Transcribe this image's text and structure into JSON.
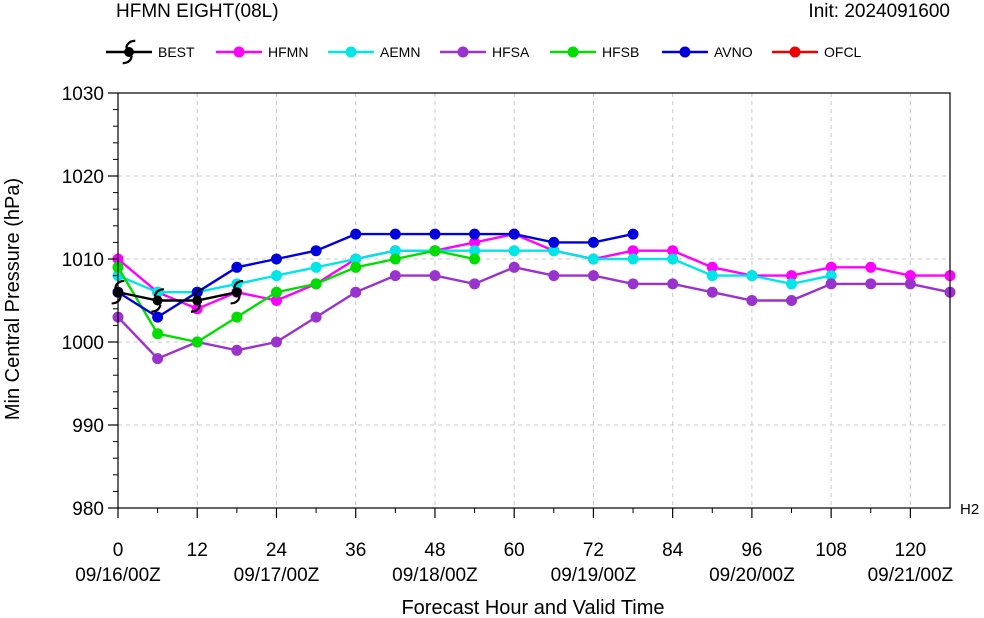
{
  "header": {
    "title": "HFMN EIGHT(08L)",
    "init": "Init: 2024091600"
  },
  "chart_data": {
    "type": "line",
    "title": "HFMN EIGHT(08L)",
    "subtitle": "Init: 2024091600",
    "xlabel": "Forecast Hour and Valid Time",
    "ylabel": "Min Central Pressure (hPa)",
    "xlim": [
      0,
      126
    ],
    "ylim": [
      980,
      1030
    ],
    "x_ticks": [
      0,
      12,
      24,
      36,
      48,
      60,
      72,
      84,
      96,
      108,
      120
    ],
    "x_tick_labels": [
      "0",
      "12",
      "24",
      "36",
      "48",
      "60",
      "72",
      "84",
      "96",
      "108",
      "120"
    ],
    "date_labels": [
      {
        "x": 0,
        "label": "09/16/00Z"
      },
      {
        "x": 24,
        "label": "09/17/00Z"
      },
      {
        "x": 48,
        "label": "09/18/00Z"
      },
      {
        "x": 72,
        "label": "09/19/00Z"
      },
      {
        "x": 96,
        "label": "09/20/00Z"
      },
      {
        "x": 120,
        "label": "09/21/00Z"
      }
    ],
    "y_ticks": [
      980,
      990,
      1000,
      1010,
      1020,
      1030
    ],
    "y_tick_labels": [
      "980",
      "990",
      "1000",
      "1010",
      "1020",
      "1030"
    ],
    "grid": true,
    "legend_position": "top",
    "corner_label": "H2",
    "series": [
      {
        "name": "HFMN",
        "color": "#ff00ff",
        "x": [
          0,
          6,
          12,
          18,
          24,
          30,
          36,
          42,
          48,
          54,
          60,
          66,
          72,
          78,
          84,
          90,
          96,
          102,
          108,
          114,
          120,
          126
        ],
        "y": [
          1010,
          1006,
          1004,
          1006,
          1005,
          1007,
          1010,
          1011,
          1011,
          1012,
          1013,
          1011,
          1010,
          1011,
          1011,
          1009,
          1008,
          1008,
          1009,
          1009,
          1008,
          1008
        ]
      },
      {
        "name": "AEMN",
        "color": "#00e5e5",
        "x": [
          0,
          6,
          12,
          18,
          24,
          30,
          36,
          42,
          48,
          54,
          60,
          66,
          72,
          78,
          84,
          90,
          96,
          102,
          108
        ],
        "y": [
          1008,
          1006,
          1006,
          1007,
          1008,
          1009,
          1010,
          1011,
          1011,
          1011,
          1011,
          1011,
          1010,
          1010,
          1010,
          1008,
          1008,
          1007,
          1008
        ]
      },
      {
        "name": "HFSA",
        "color": "#9a32cd",
        "x": [
          0,
          6,
          12,
          18,
          24,
          30,
          36,
          42,
          48,
          54,
          60,
          66,
          72,
          78,
          84,
          90,
          96,
          102,
          108,
          114,
          120,
          126
        ],
        "y": [
          1003,
          998,
          1000,
          999,
          1000,
          1003,
          1006,
          1008,
          1008,
          1007,
          1009,
          1008,
          1008,
          1007,
          1007,
          1006,
          1005,
          1005,
          1007,
          1007,
          1007,
          1006
        ]
      },
      {
        "name": "HFSB",
        "color": "#00dd00",
        "x": [
          0,
          6,
          12,
          18,
          24,
          30,
          36,
          42,
          48,
          54
        ],
        "y": [
          1009,
          1001,
          1000,
          1003,
          1006,
          1007,
          1009,
          1010,
          1011,
          1010
        ]
      },
      {
        "name": "AVNO",
        "color": "#0000dd",
        "x": [
          0,
          6,
          12,
          18,
          24,
          30,
          36,
          42,
          48,
          54,
          60,
          66,
          72,
          78
        ],
        "y": [
          1006,
          1003,
          1006,
          1009,
          1010,
          1011,
          1013,
          1013,
          1013,
          1013,
          1013,
          1012,
          1012,
          1013
        ]
      },
      {
        "name": "OFCL",
        "color": "#ee0000",
        "x": [],
        "y": []
      },
      {
        "name": "BEST",
        "color": "#000000",
        "x": [
          0,
          6,
          12,
          18
        ],
        "y": [
          1006,
          1005,
          1005,
          1006
        ]
      }
    ],
    "legend": [
      {
        "name": "BEST",
        "color": "#000000",
        "marker": "hurricane-symbol"
      },
      {
        "name": "HFMN",
        "color": "#ff00ff",
        "marker": "circle"
      },
      {
        "name": "AEMN",
        "color": "#00e5e5",
        "marker": "circle"
      },
      {
        "name": "HFSA",
        "color": "#9a32cd",
        "marker": "circle"
      },
      {
        "name": "HFSB",
        "color": "#00dd00",
        "marker": "circle"
      },
      {
        "name": "AVNO",
        "color": "#0000dd",
        "marker": "circle"
      },
      {
        "name": "OFCL",
        "color": "#ee0000",
        "marker": "circle"
      }
    ]
  }
}
